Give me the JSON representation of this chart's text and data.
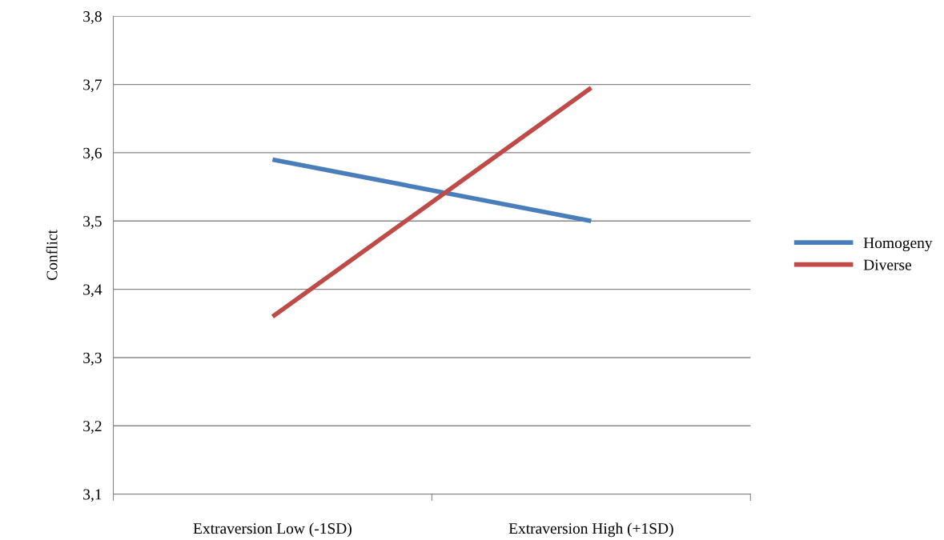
{
  "chart_data": {
    "type": "line",
    "ylabel": "Conflict",
    "categories": [
      "Extraversion Low (-1SD)",
      "Extraversion High (+1SD)"
    ],
    "series": [
      {
        "name": "Homogeny",
        "color": "#4a7ebb",
        "values": [
          3.59,
          3.5
        ]
      },
      {
        "name": "Diverse",
        "color": "#be4b48",
        "values": [
          3.36,
          3.695
        ]
      }
    ],
    "ylim": [
      3.1,
      3.8
    ],
    "yticks": [
      {
        "value": 3.1,
        "label": "3,1"
      },
      {
        "value": 3.2,
        "label": "3,2"
      },
      {
        "value": 3.3,
        "label": "3,3"
      },
      {
        "value": 3.4,
        "label": "3,4"
      },
      {
        "value": 3.5,
        "label": "3,5"
      },
      {
        "value": 3.6,
        "label": "3,6"
      },
      {
        "value": 3.7,
        "label": "3,7"
      },
      {
        "value": 3.8,
        "label": "3,8"
      }
    ],
    "grid": "y",
    "legend": "right",
    "marker": "none",
    "line_style": "solid"
  }
}
